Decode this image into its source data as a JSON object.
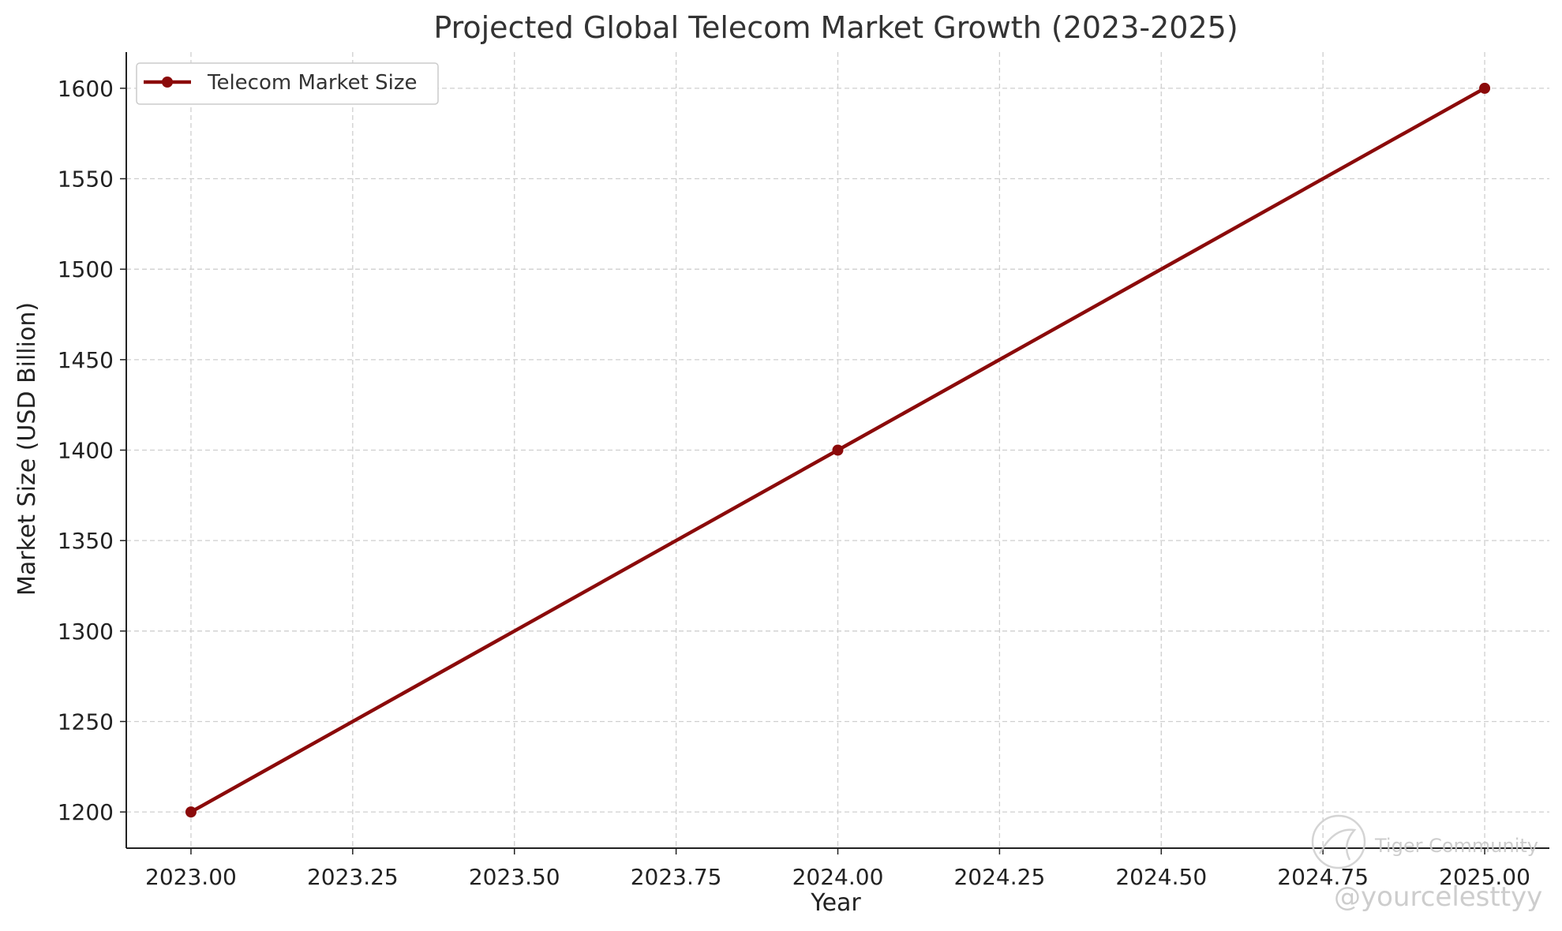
{
  "chart_data": {
    "type": "line",
    "title": "Projected Global Telecom Market Growth (2023-2025)",
    "xlabel": "Year",
    "ylabel": "Market Size (USD Billion)",
    "x": [
      2023,
      2024,
      2025
    ],
    "series": [
      {
        "name": "Telecom Market Size",
        "values": [
          1200,
          1400,
          1600
        ],
        "color": "#8b0a0a",
        "marker": "circle"
      }
    ],
    "xlim": [
      2022.9,
      2025.1
    ],
    "ylim": [
      1180,
      1620
    ],
    "x_ticks": [
      2023.0,
      2023.25,
      2023.5,
      2023.75,
      2024.0,
      2024.25,
      2024.5,
      2024.75,
      2025.0
    ],
    "x_tick_labels": [
      "2023.00",
      "2023.25",
      "2023.50",
      "2023.75",
      "2024.00",
      "2024.25",
      "2024.50",
      "2024.75",
      "2025.00"
    ],
    "y_ticks": [
      1200,
      1250,
      1300,
      1350,
      1400,
      1450,
      1500,
      1550,
      1600
    ],
    "y_tick_labels": [
      "1200",
      "1250",
      "1300",
      "1350",
      "1400",
      "1450",
      "1500",
      "1550",
      "1600"
    ],
    "grid": true,
    "grid_style": "dashed",
    "legend_position": "top-left"
  },
  "watermark": {
    "brand": "Tiger Community",
    "handle": "@yourcelesttyy",
    "color": "#c8c8c8"
  }
}
